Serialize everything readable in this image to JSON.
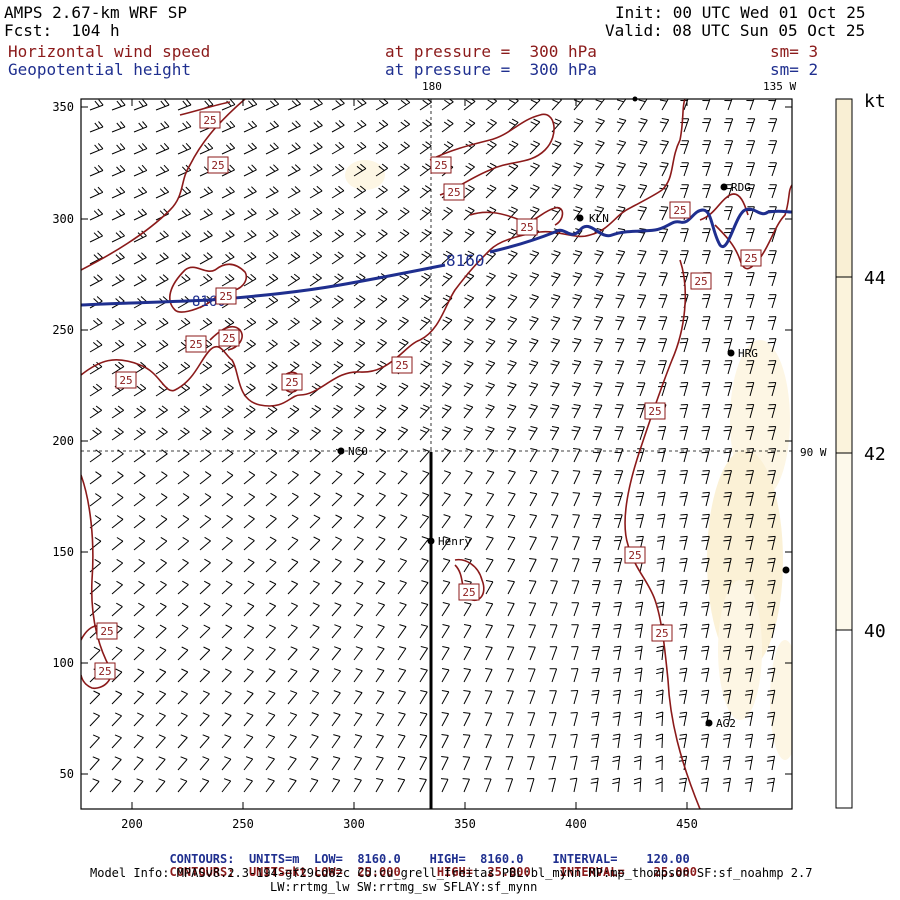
{
  "header": {
    "model_title": "AMPS 2.67-km WRF SP",
    "forecast": "Fcst:  104 h",
    "init": "Init: 00 UTC Wed 01 Oct 25",
    "valid": "Valid: 08 UTC Sun 05 Oct 25",
    "field1_name": "Horizontal wind speed",
    "field1_level": "at pressure =  300 hPa",
    "field1_smooth": "sm= 3",
    "field2_name": "Geopotential height",
    "field2_level": "at pressure =  300 hPa",
    "field2_smooth": "sm= 2"
  },
  "map": {
    "lon_labels": [
      "180",
      "135 W",
      "90 W"
    ],
    "x_ticks": [
      "200",
      "250",
      "300",
      "350",
      "400",
      "450"
    ],
    "y_ticks": [
      "50",
      "100",
      "150",
      "200",
      "250",
      "300",
      "350"
    ],
    "stations": [
      "RDG",
      "KLN",
      "HRG",
      "NCO",
      "Henry",
      "AG2"
    ],
    "height_contour_label": "8160",
    "speed_contour_label": "25"
  },
  "colorbar": {
    "unit": "kt",
    "ticks": [
      "44",
      "42",
      "40"
    ],
    "colors": [
      "#f9efd4",
      "#fbf3dc",
      "#fdf9eb",
      "#ffffff"
    ]
  },
  "footer": {
    "c1_label": "CONTOURS:",
    "c1_units": "UNITS=m",
    "c1_low_label": "LOW=",
    "c1_low": "8160.0",
    "c1_high_label": "HIGH=",
    "c1_high": "8160.0",
    "c1_int_label": "INTERVAL=",
    "c1_int": "120.00",
    "c2_label": "CONTOURS:",
    "c2_units": "UNITS=kt",
    "c2_low_label": "LOW=",
    "c2_low": "25.000",
    "c2_high_label": "HIGH=",
    "c2_high": "25.000",
    "c2_int_label": "INTERVAL=",
    "c2_int": "25.000",
    "model_info": "Model Info: MPASv8.2.3-194-gf29cd82c CU:cu_grell_freitas PBL:bl_mynn MP:mp_thompson SF:sf_noahmp 2.7",
    "model_info2": "LW:rrtmg_lw SW:rrtmg_sw SFLAY:sf_mynn"
  },
  "palette": {
    "height_contour": "#1f2f8f",
    "speed_contour": "#8b1a1a",
    "barbs": "#000000"
  }
}
